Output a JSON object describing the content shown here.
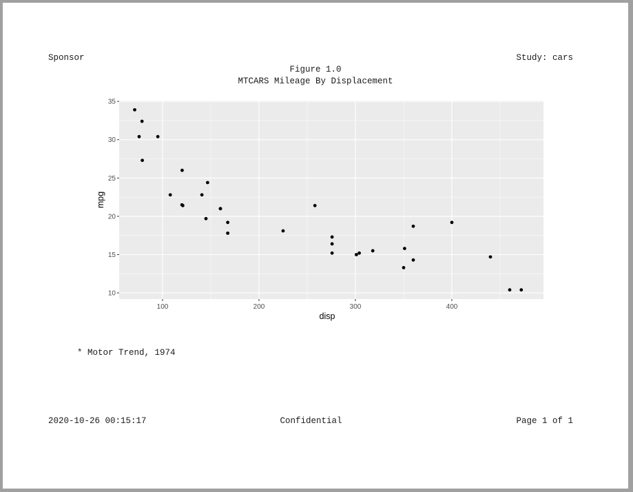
{
  "header": {
    "left": "Sponsor",
    "right": "Study: cars"
  },
  "titles": {
    "line1": "Figure 1.0",
    "line2": "MTCARS Mileage By Displacement"
  },
  "footnote": "* Motor Trend, 1974",
  "footer": {
    "left": "2020-10-26 00:15:17",
    "center": "Confidential",
    "right": "Page 1 of 1"
  },
  "colors": {
    "panel": "#ebebeb",
    "grid": "#ffffff",
    "point": "#000000"
  },
  "chart_data": {
    "type": "scatter",
    "title": "",
    "xlabel": "disp",
    "ylabel": "mpg",
    "xlim": [
      55,
      495
    ],
    "ylim": [
      9.2,
      35.1
    ],
    "xticks": [
      100,
      200,
      300,
      400
    ],
    "yticks": [
      10,
      15,
      20,
      25,
      30,
      35
    ],
    "grid": true,
    "legend": "none",
    "points": [
      [
        160,
        21.0
      ],
      [
        160,
        21.0
      ],
      [
        108,
        22.8
      ],
      [
        258,
        21.4
      ],
      [
        360,
        18.7
      ],
      [
        225,
        18.1
      ],
      [
        360,
        14.3
      ],
      [
        146.7,
        24.4
      ],
      [
        140.8,
        22.8
      ],
      [
        167.6,
        19.2
      ],
      [
        167.6,
        17.8
      ],
      [
        275.8,
        16.4
      ],
      [
        275.8,
        17.3
      ],
      [
        275.8,
        15.2
      ],
      [
        472,
        10.4
      ],
      [
        460,
        10.4
      ],
      [
        440,
        14.7
      ],
      [
        78.7,
        32.4
      ],
      [
        75.7,
        30.4
      ],
      [
        71.1,
        33.9
      ],
      [
        120.1,
        21.5
      ],
      [
        318,
        15.5
      ],
      [
        304,
        15.2
      ],
      [
        350,
        13.3
      ],
      [
        400,
        19.2
      ],
      [
        79,
        27.3
      ],
      [
        120.3,
        26.0
      ],
      [
        95.1,
        30.4
      ],
      [
        351,
        15.8
      ],
      [
        145,
        19.7
      ],
      [
        301,
        15.0
      ],
      [
        121,
        21.4
      ]
    ]
  }
}
